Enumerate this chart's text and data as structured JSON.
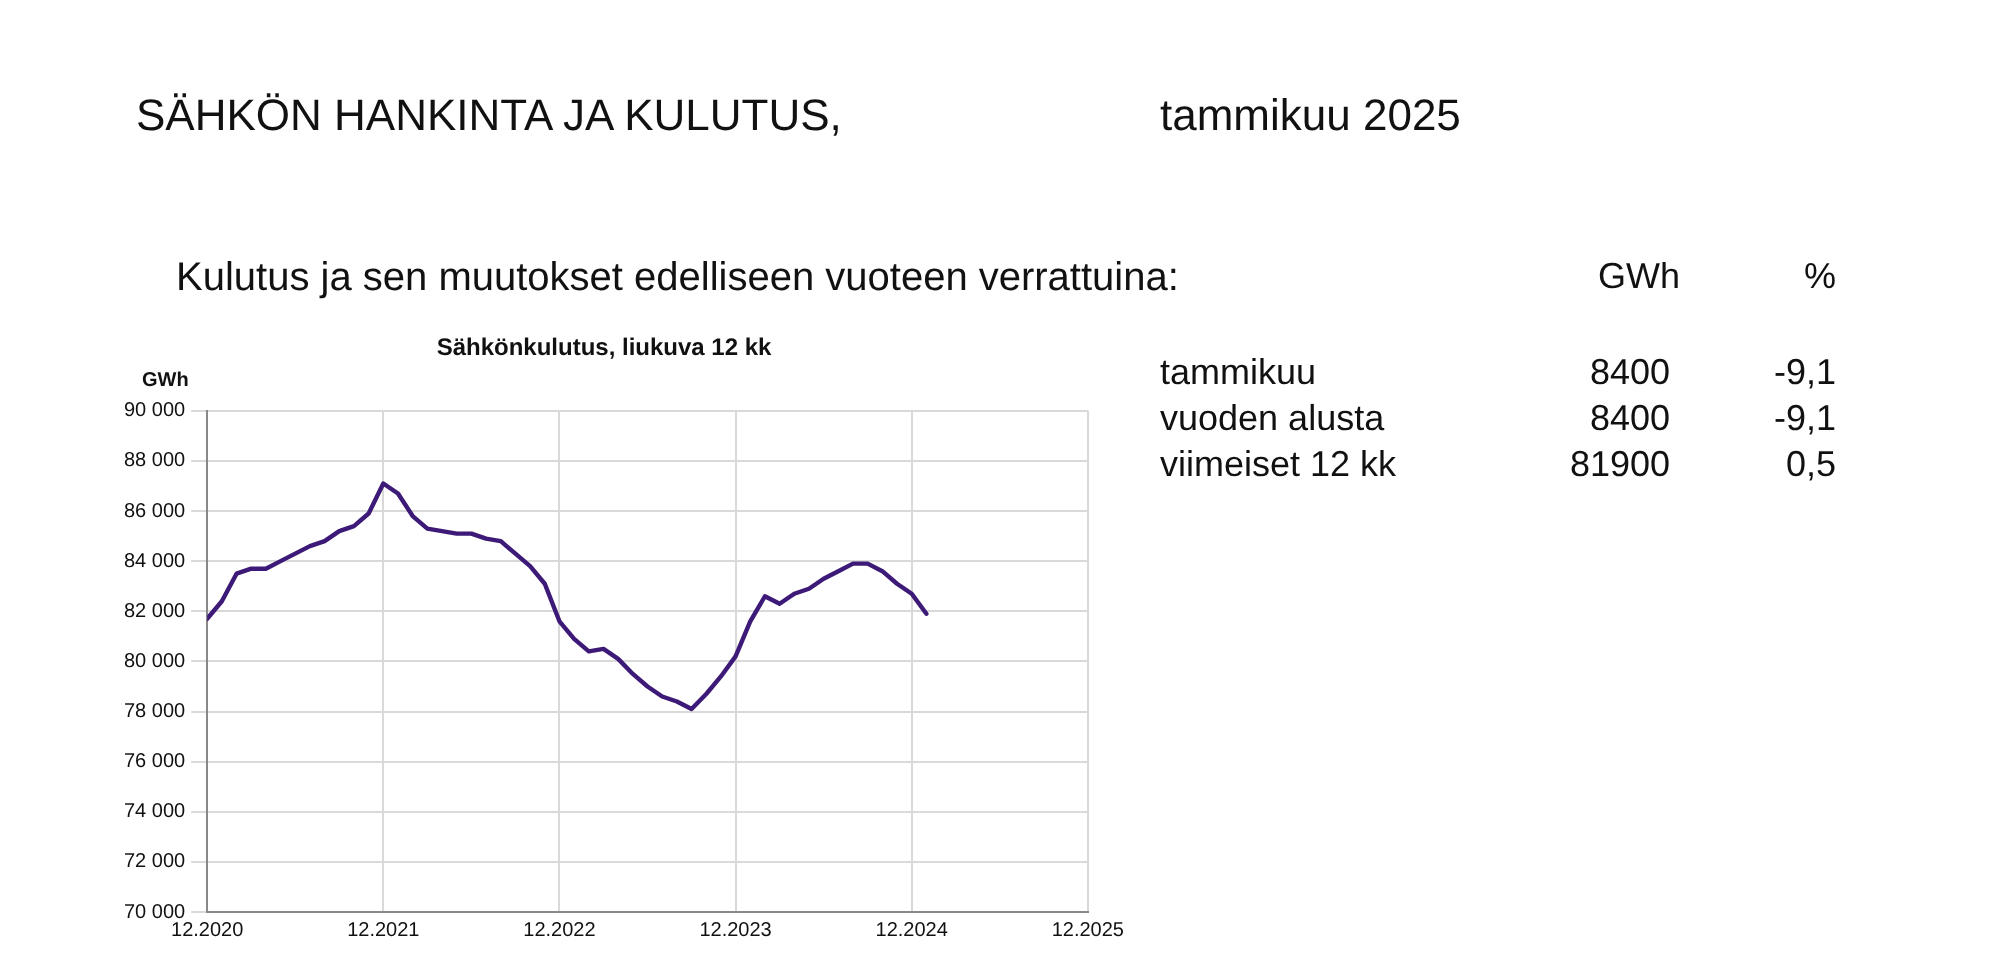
{
  "chart_data": {
    "type": "line",
    "title": "Sähkönkulutus, liukuva 12 kk",
    "ylabel": "GWh",
    "x": [
      "2020-12",
      "2021-01",
      "2021-02",
      "2021-03",
      "2021-04",
      "2021-05",
      "2021-06",
      "2021-07",
      "2021-08",
      "2021-09",
      "2021-10",
      "2021-11",
      "2021-12",
      "2022-01",
      "2022-02",
      "2022-03",
      "2022-04",
      "2022-05",
      "2022-06",
      "2022-07",
      "2022-08",
      "2022-09",
      "2022-10",
      "2022-11",
      "2022-12",
      "2023-01",
      "2023-02",
      "2023-03",
      "2023-04",
      "2023-05",
      "2023-06",
      "2023-07",
      "2023-08",
      "2023-09",
      "2023-10",
      "2023-11",
      "2023-12",
      "2024-01",
      "2024-02",
      "2024-03",
      "2024-04",
      "2024-05",
      "2024-06",
      "2024-07",
      "2024-08",
      "2024-09",
      "2024-10",
      "2024-11",
      "2024-12",
      "2025-01"
    ],
    "series": [
      {
        "color": "#3d1a78",
        "values": [
          81700,
          82400,
          83500,
          83700,
          83700,
          84000,
          84300,
          84600,
          84800,
          85200,
          85400,
          85900,
          87100,
          86700,
          85800,
          85300,
          85200,
          85100,
          85100,
          84900,
          84800,
          84300,
          83800,
          83100,
          81600,
          80900,
          80400,
          80500,
          80100,
          79500,
          79000,
          78600,
          78400,
          78100,
          78700,
          79400,
          80200,
          81600,
          82600,
          82300,
          82700,
          82900,
          83300,
          83600,
          83900,
          83900,
          83600,
          83100,
          82700,
          81900
        ]
      }
    ],
    "xlim": [
      "2020-12",
      "2025-12"
    ],
    "xticks": [
      {
        "value": "2020-12",
        "label": "12.2020"
      },
      {
        "value": "2021-12",
        "label": "12.2021"
      },
      {
        "value": "2022-12",
        "label": "12.2022"
      },
      {
        "value": "2023-12",
        "label": "12.2023"
      },
      {
        "value": "2024-12",
        "label": "12.2024"
      },
      {
        "value": "2025-12",
        "label": "12.2025"
      }
    ],
    "ylim": [
      70000,
      90000
    ],
    "yticks": [
      {
        "value": 70000,
        "label": "70 000"
      },
      {
        "value": 72000,
        "label": "72 000"
      },
      {
        "value": 74000,
        "label": "74 000"
      },
      {
        "value": 76000,
        "label": "76 000"
      },
      {
        "value": 78000,
        "label": "78 000"
      },
      {
        "value": 80000,
        "label": "80 000"
      },
      {
        "value": 82000,
        "label": "82 000"
      },
      {
        "value": 84000,
        "label": "84 000"
      },
      {
        "value": 86000,
        "label": "86 000"
      },
      {
        "value": 88000,
        "label": "88 000"
      },
      {
        "value": 90000,
        "label": "90 000"
      }
    ],
    "grid": true,
    "legend": false,
    "marker": "none",
    "line_style": "solid",
    "annotations": [
      "SÄHKÖN HANKINTA JA KULUTUS,",
      "tammikuu 2025",
      "Kulutus ja sen muutokset edelliseen vuoteen verrattuina:",
      "GWh",
      "%",
      "tammikuu",
      "8400",
      "-9,1",
      "vuoden alusta",
      "8400",
      "-9,1",
      "viimeiset 12 kk",
      "81900",
      "0,5"
    ]
  }
}
